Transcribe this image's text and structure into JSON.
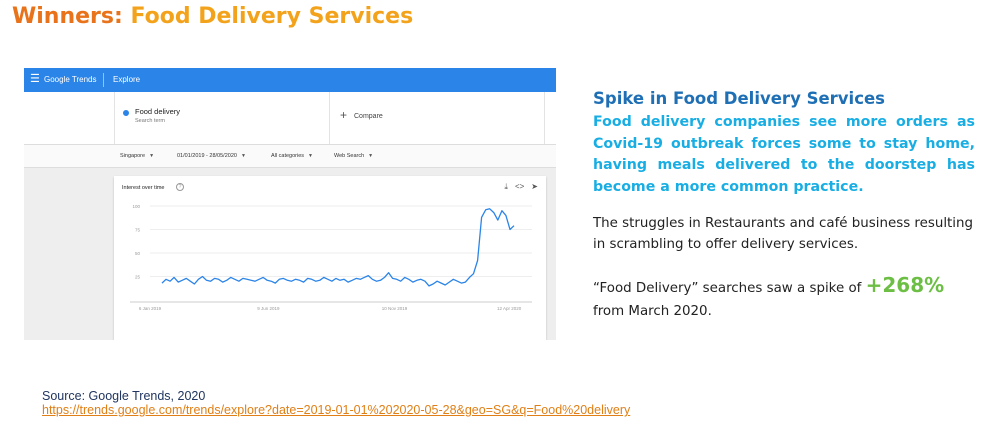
{
  "slide": {
    "title_prefix": "Winners: ",
    "title_topic": "Food Delivery Services",
    "title_color": "#e8731a",
    "topic_color": "#f3a31b"
  },
  "trends": {
    "menu_icon": "hamburger-icon",
    "logo": "Google Trends",
    "explore": "Explore",
    "search_term": "Food delivery",
    "search_term_sub": "Search term",
    "compare_label": "Compare",
    "filters": {
      "region": "Singapore",
      "date_range": "01/01/2019 - 28/05/2020",
      "category": "All categories",
      "search_type": "Web Search"
    },
    "card_title": "Interest over time",
    "icons": [
      "download-icon",
      "embed-icon",
      "share-icon"
    ]
  },
  "chart_data": {
    "type": "line",
    "ylim": [
      0,
      100
    ],
    "y_ticks": [
      25,
      50,
      75,
      100
    ],
    "x_ticks": [
      "6 Jan 2019",
      "9 Jun 2019",
      "10 Nov 2019",
      "12 Apr 2020"
    ],
    "series": [
      {
        "color": "#2b84e8",
        "values": [
          18,
          22,
          20,
          24,
          19,
          21,
          23,
          20,
          17,
          22,
          25,
          21,
          20,
          23,
          22,
          19,
          21,
          24,
          22,
          20,
          23,
          22,
          21,
          20,
          22,
          24,
          21,
          20,
          18,
          22,
          23,
          21,
          20,
          22,
          21,
          19,
          23,
          22,
          20,
          21,
          24,
          22,
          20,
          23,
          21,
          22,
          19,
          21,
          23,
          22,
          24,
          26,
          22,
          20,
          21,
          24,
          29,
          23,
          22,
          20,
          24,
          22,
          19,
          21,
          22,
          20,
          15,
          17,
          20,
          18,
          16,
          19,
          22,
          20,
          18,
          19,
          24,
          28,
          42,
          88,
          96,
          97,
          93,
          85,
          95,
          90,
          75,
          79
        ]
      }
    ]
  },
  "panel": {
    "heading": "Spike in Food Delivery Services",
    "lead": "Food delivery companies see more orders as Covid-19 outbreak forces some to stay home, having meals delivered to the doorstep has become a more common practice.",
    "body": "The struggles in Restaurants and café business resulting in scrambling to offer delivery services.",
    "stat_prefix": "“Food Delivery” searches saw a spike of ",
    "stat_value": "+268%",
    "stat_suffix": " from March 2020."
  },
  "source": {
    "label": "Source: Google Trends, 2020",
    "url": "https://trends.google.com/trends/explore?date=2019-01-01%202020-05-28&geo=SG&q=Food%20delivery"
  }
}
